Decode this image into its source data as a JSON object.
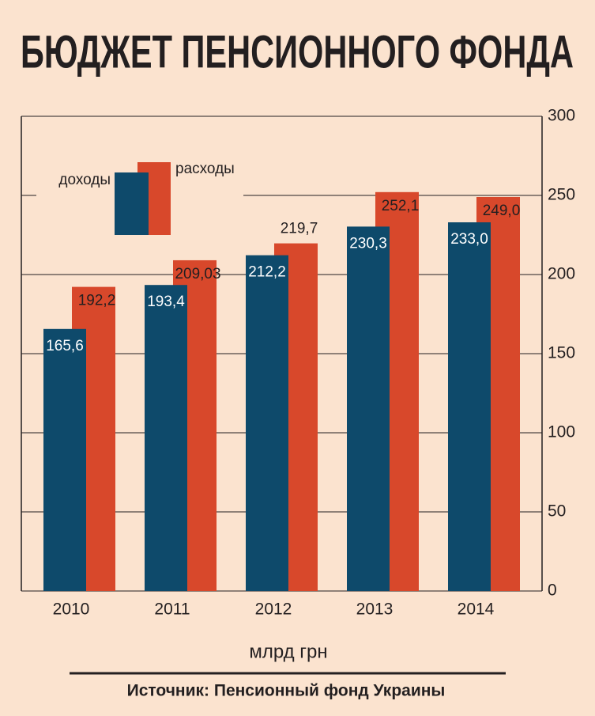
{
  "chart_data": {
    "type": "bar",
    "title": "БЮДЖЕТ ПЕНСИОННОГО ФОНДА",
    "y_label": "млрд грн",
    "source": "Источник: Пенсионный фонд Украины",
    "categories": [
      "2010",
      "2011",
      "2012",
      "2013",
      "2014"
    ],
    "series": [
      {
        "name": "доходы",
        "color": "#0e4a6b",
        "values": [
          165.6,
          193.4,
          212.2,
          230.3,
          233.0
        ],
        "value_labels": [
          "165,6",
          "193,4",
          "212,2",
          "230,3",
          "233,0"
        ]
      },
      {
        "name": "расходы",
        "color": "#d8482b",
        "values": [
          192.2,
          209.03,
          219.7,
          252.1,
          249.0
        ],
        "value_labels": [
          "192,2",
          "209,03",
          "219,7",
          "252,1",
          "249,0"
        ]
      }
    ],
    "ylim": [
      0,
      300
    ],
    "yticks": [
      0,
      50,
      100,
      150,
      200,
      250,
      300
    ],
    "grid": true
  }
}
